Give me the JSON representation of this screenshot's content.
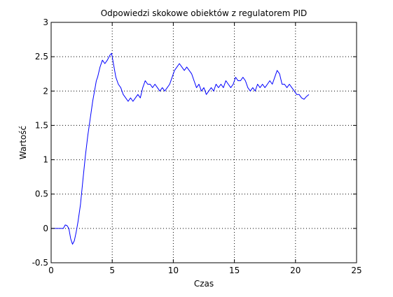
{
  "chart_data": {
    "type": "line",
    "title": "Odpowiedzi skokowe obiektów z regulatorem PID",
    "xlabel": "Czas",
    "ylabel": "Wartość",
    "xlim": [
      0,
      25
    ],
    "ylim": [
      -0.5,
      3
    ],
    "xticks": [
      0,
      5,
      10,
      15,
      20,
      25
    ],
    "yticks": [
      -0.5,
      0,
      0.5,
      1,
      1.5,
      2,
      2.5,
      3
    ],
    "xtick_labels": [
      "0",
      "5",
      "10",
      "15",
      "20",
      "25"
    ],
    "ytick_labels": [
      "-0.5",
      "0",
      "0.5",
      "1",
      "1.5",
      "2",
      "2.5",
      "3"
    ],
    "grid": true,
    "grid_style": "dotted",
    "legend": "none",
    "series": [
      {
        "color": "#0000ff",
        "x": [
          0.0,
          1.0,
          1.15,
          1.3,
          1.45,
          1.6,
          1.75,
          1.9,
          2.05,
          2.2,
          2.4,
          2.6,
          2.8,
          3.0,
          3.2,
          3.4,
          3.6,
          3.7,
          3.8,
          4.0,
          4.2,
          4.4,
          4.6,
          4.8,
          4.95,
          5.1,
          5.3,
          5.5,
          5.7,
          5.9,
          6.1,
          6.3,
          6.5,
          6.7,
          6.9,
          7.1,
          7.3,
          7.5,
          7.7,
          7.9,
          8.1,
          8.3,
          8.5,
          8.7,
          8.9,
          9.1,
          9.3,
          9.5,
          9.7,
          9.9,
          10.1,
          10.3,
          10.5,
          10.7,
          10.9,
          11.1,
          11.3,
          11.5,
          11.7,
          11.9,
          12.1,
          12.3,
          12.5,
          12.7,
          12.9,
          13.1,
          13.3,
          13.5,
          13.7,
          13.9,
          14.1,
          14.3,
          14.5,
          14.7,
          14.9,
          15.1,
          15.3,
          15.5,
          15.7,
          15.9,
          16.1,
          16.3,
          16.5,
          16.7,
          16.9,
          17.1,
          17.3,
          17.5,
          17.7,
          17.9,
          18.1,
          18.3,
          18.5,
          18.7,
          18.9,
          19.1,
          19.3,
          19.5,
          19.7,
          19.9,
          20.1,
          20.3,
          20.5,
          20.7,
          20.9,
          21.1
        ],
        "y": [
          0.0,
          0.0,
          0.05,
          0.04,
          0.0,
          -0.15,
          -0.23,
          -0.18,
          -0.05,
          0.1,
          0.35,
          0.7,
          1.05,
          1.35,
          1.6,
          1.85,
          2.05,
          2.15,
          2.2,
          2.35,
          2.45,
          2.4,
          2.45,
          2.52,
          2.55,
          2.4,
          2.2,
          2.1,
          2.05,
          1.95,
          1.9,
          1.85,
          1.9,
          1.85,
          1.9,
          1.95,
          1.9,
          2.05,
          2.15,
          2.1,
          2.1,
          2.05,
          2.1,
          2.05,
          2.0,
          2.05,
          2.0,
          2.05,
          2.1,
          2.2,
          2.3,
          2.35,
          2.4,
          2.35,
          2.3,
          2.35,
          2.3,
          2.25,
          2.15,
          2.05,
          2.1,
          2.0,
          2.05,
          1.95,
          2.0,
          2.05,
          2.0,
          2.1,
          2.05,
          2.1,
          2.05,
          2.15,
          2.1,
          2.05,
          2.1,
          2.2,
          2.15,
          2.15,
          2.2,
          2.15,
          2.05,
          2.0,
          2.05,
          2.0,
          2.1,
          2.05,
          2.1,
          2.05,
          2.1,
          2.15,
          2.1,
          2.2,
          2.3,
          2.25,
          2.1,
          2.1,
          2.05,
          2.1,
          2.05,
          2.0,
          1.95,
          1.95,
          1.9,
          1.88,
          1.92,
          1.95
        ]
      }
    ]
  }
}
